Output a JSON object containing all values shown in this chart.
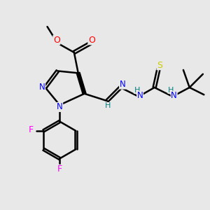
{
  "bg_color": "#e8e8e8",
  "bond_color": "#000000",
  "bond_width": 1.8,
  "colors": {
    "N": "#0000ff",
    "O": "#ff0000",
    "F": "#ff00ff",
    "S": "#cccc00",
    "C": "#000000",
    "H": "#008080"
  },
  "figsize": [
    3.0,
    3.0
  ],
  "dpi": 100
}
